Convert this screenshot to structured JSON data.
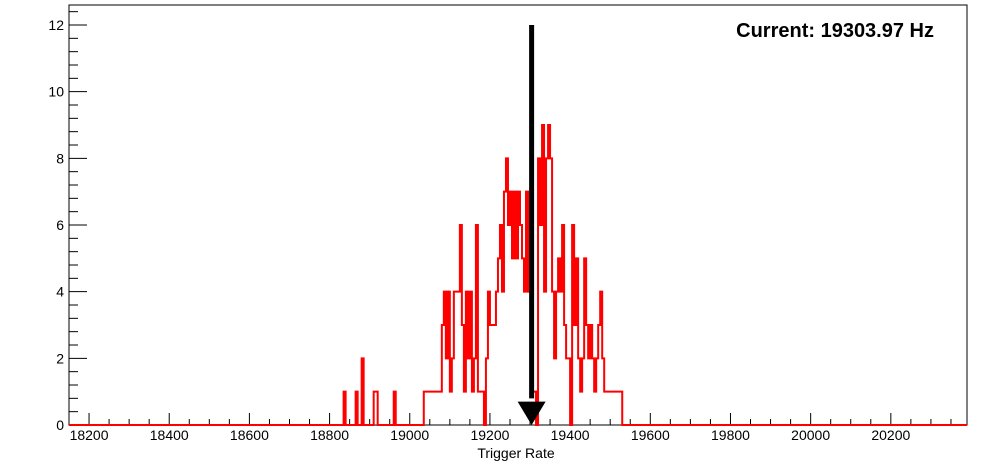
{
  "chart_data": {
    "type": "histogram",
    "title": "",
    "xlabel": "Trigger Rate",
    "ylabel": "",
    "xlim": [
      18150,
      20390
    ],
    "ylim": [
      0,
      12.6
    ],
    "bin_width": 5,
    "line_color": "#ff0000",
    "marker_color": "#000000",
    "grid": false,
    "legend": "none",
    "x_ticks": [
      18200,
      18400,
      18600,
      18800,
      19000,
      19200,
      19400,
      19600,
      19800,
      20000,
      20200
    ],
    "x_tick_labels": [
      "18200",
      "18400",
      "18600",
      "18800",
      "19000",
      "19200",
      "19400",
      "19600",
      "19800",
      "20000",
      "20200"
    ],
    "y_ticks": [
      0,
      2,
      4,
      6,
      8,
      10,
      12
    ],
    "y_tick_labels": [
      "0",
      "2",
      "4",
      "6",
      "8",
      "10",
      "12"
    ],
    "bins": [
      {
        "x": 18835,
        "value": 1
      },
      {
        "x": 18865,
        "value": 1
      },
      {
        "x": 18880,
        "value": 2
      },
      {
        "x": 18910,
        "value": 1
      },
      {
        "x": 18915,
        "value": 1
      },
      {
        "x": 18960,
        "value": 1
      },
      {
        "x": 19035,
        "value": 1
      },
      {
        "x": 19040,
        "value": 1
      },
      {
        "x": 19045,
        "value": 1
      },
      {
        "x": 19050,
        "value": 1
      },
      {
        "x": 19055,
        "value": 1
      },
      {
        "x": 19060,
        "value": 1
      },
      {
        "x": 19065,
        "value": 1
      },
      {
        "x": 19070,
        "value": 1
      },
      {
        "x": 19075,
        "value": 1
      },
      {
        "x": 19080,
        "value": 3
      },
      {
        "x": 19085,
        "value": 4
      },
      {
        "x": 19090,
        "value": 2
      },
      {
        "x": 19095,
        "value": 4
      },
      {
        "x": 19100,
        "value": 1
      },
      {
        "x": 19105,
        "value": 2
      },
      {
        "x": 19110,
        "value": 4
      },
      {
        "x": 19115,
        "value": 4
      },
      {
        "x": 19120,
        "value": 4
      },
      {
        "x": 19125,
        "value": 6
      },
      {
        "x": 19130,
        "value": 3
      },
      {
        "x": 19135,
        "value": 1
      },
      {
        "x": 19140,
        "value": 4
      },
      {
        "x": 19145,
        "value": 2
      },
      {
        "x": 19150,
        "value": 4
      },
      {
        "x": 19155,
        "value": 1
      },
      {
        "x": 19160,
        "value": 2
      },
      {
        "x": 19165,
        "value": 6
      },
      {
        "x": 19170,
        "value": 1
      },
      {
        "x": 19175,
        "value": 1
      },
      {
        "x": 19180,
        "value": 1
      },
      {
        "x": 19185,
        "value": 0
      },
      {
        "x": 19190,
        "value": 2
      },
      {
        "x": 19195,
        "value": 4
      },
      {
        "x": 19200,
        "value": 3
      },
      {
        "x": 19205,
        "value": 3
      },
      {
        "x": 19210,
        "value": 3
      },
      {
        "x": 19215,
        "value": 4
      },
      {
        "x": 19220,
        "value": 5
      },
      {
        "x": 19225,
        "value": 6
      },
      {
        "x": 19230,
        "value": 4
      },
      {
        "x": 19235,
        "value": 7
      },
      {
        "x": 19240,
        "value": 8
      },
      {
        "x": 19245,
        "value": 6
      },
      {
        "x": 19250,
        "value": 7
      },
      {
        "x": 19255,
        "value": 5
      },
      {
        "x": 19260,
        "value": 7
      },
      {
        "x": 19265,
        "value": 5
      },
      {
        "x": 19270,
        "value": 7
      },
      {
        "x": 19275,
        "value": 6
      },
      {
        "x": 19280,
        "value": 5
      },
      {
        "x": 19285,
        "value": 4
      },
      {
        "x": 19290,
        "value": 7
      },
      {
        "x": 19295,
        "value": 4
      },
      {
        "x": 19300,
        "value": 4
      },
      {
        "x": 19305,
        "value": 1
      },
      {
        "x": 19310,
        "value": 1
      },
      {
        "x": 19315,
        "value": 0
      },
      {
        "x": 19320,
        "value": 8
      },
      {
        "x": 19325,
        "value": 6
      },
      {
        "x": 19330,
        "value": 9
      },
      {
        "x": 19335,
        "value": 4
      },
      {
        "x": 19340,
        "value": 8
      },
      {
        "x": 19345,
        "value": 9
      },
      {
        "x": 19350,
        "value": 8
      },
      {
        "x": 19355,
        "value": 4
      },
      {
        "x": 19360,
        "value": 2
      },
      {
        "x": 19365,
        "value": 4
      },
      {
        "x": 19370,
        "value": 5
      },
      {
        "x": 19375,
        "value": 4
      },
      {
        "x": 19380,
        "value": 6
      },
      {
        "x": 19385,
        "value": 3
      },
      {
        "x": 19390,
        "value": 2
      },
      {
        "x": 19395,
        "value": 2
      },
      {
        "x": 19400,
        "value": 0
      },
      {
        "x": 19405,
        "value": 6
      },
      {
        "x": 19410,
        "value": 3
      },
      {
        "x": 19415,
        "value": 5
      },
      {
        "x": 19420,
        "value": 2
      },
      {
        "x": 19425,
        "value": 1
      },
      {
        "x": 19430,
        "value": 2
      },
      {
        "x": 19435,
        "value": 5
      },
      {
        "x": 19440,
        "value": 3
      },
      {
        "x": 19445,
        "value": 2
      },
      {
        "x": 19450,
        "value": 3
      },
      {
        "x": 19455,
        "value": 2
      },
      {
        "x": 19460,
        "value": 1
      },
      {
        "x": 19465,
        "value": 2
      },
      {
        "x": 19470,
        "value": 3
      },
      {
        "x": 19475,
        "value": 4
      },
      {
        "x": 19480,
        "value": 2
      },
      {
        "x": 19485,
        "value": 1
      },
      {
        "x": 19490,
        "value": 1
      },
      {
        "x": 19495,
        "value": 1
      },
      {
        "x": 19500,
        "value": 1
      },
      {
        "x": 19505,
        "value": 1
      },
      {
        "x": 19510,
        "value": 1
      },
      {
        "x": 19515,
        "value": 1
      },
      {
        "x": 19520,
        "value": 1
      },
      {
        "x": 19525,
        "value": 1
      }
    ],
    "marker": {
      "x": 19303.97,
      "label": "Current: 19303.97 Hz"
    }
  }
}
